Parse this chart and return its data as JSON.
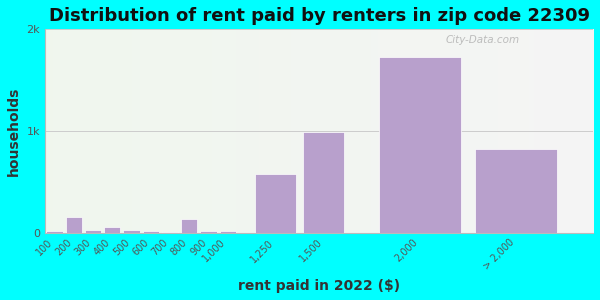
{
  "title": "Distribution of rent paid by renters in zip code 22309",
  "xlabel": "rent paid in 2022 ($)",
  "ylabel": "households",
  "background_color": "#00FFFF",
  "bar_color": "#b8a0cc",
  "categories": [
    "100",
    "200",
    "300",
    "400",
    "500",
    "600",
    "700",
    "800",
    "900",
    "1,000",
    "1,250",
    "1,500",
    "2,000",
    "> 2,000"
  ],
  "values": [
    15,
    155,
    30,
    60,
    22,
    12,
    10,
    135,
    15,
    12,
    580,
    990,
    1730,
    820
  ],
  "bar_positions": [
    100,
    200,
    300,
    400,
    500,
    600,
    700,
    800,
    900,
    1000,
    1250,
    1500,
    2000,
    2500
  ],
  "bar_widths": [
    100,
    100,
    100,
    100,
    100,
    100,
    100,
    100,
    100,
    100,
    250,
    250,
    500,
    500
  ],
  "xlim": [
    50,
    2900
  ],
  "xtick_positions": [
    100,
    200,
    300,
    400,
    500,
    600,
    700,
    800,
    900,
    1000,
    1250,
    1500,
    2000,
    2500
  ],
  "xtick_labels": [
    "100",
    "200",
    "300",
    "400",
    "500",
    "600",
    "700",
    "800",
    "900",
    "1,000",
    "1,250",
    "1,500",
    "2,000",
    "> 2,000"
  ],
  "ylim": [
    0,
    2000
  ],
  "ytick_positions": [
    0,
    1000,
    2000
  ],
  "ytick_labels": [
    "0",
    "1k",
    "2k"
  ],
  "title_fontsize": 13,
  "label_fontsize": 10,
  "tick_fontsize": 8,
  "watermark": "City-Data.com"
}
